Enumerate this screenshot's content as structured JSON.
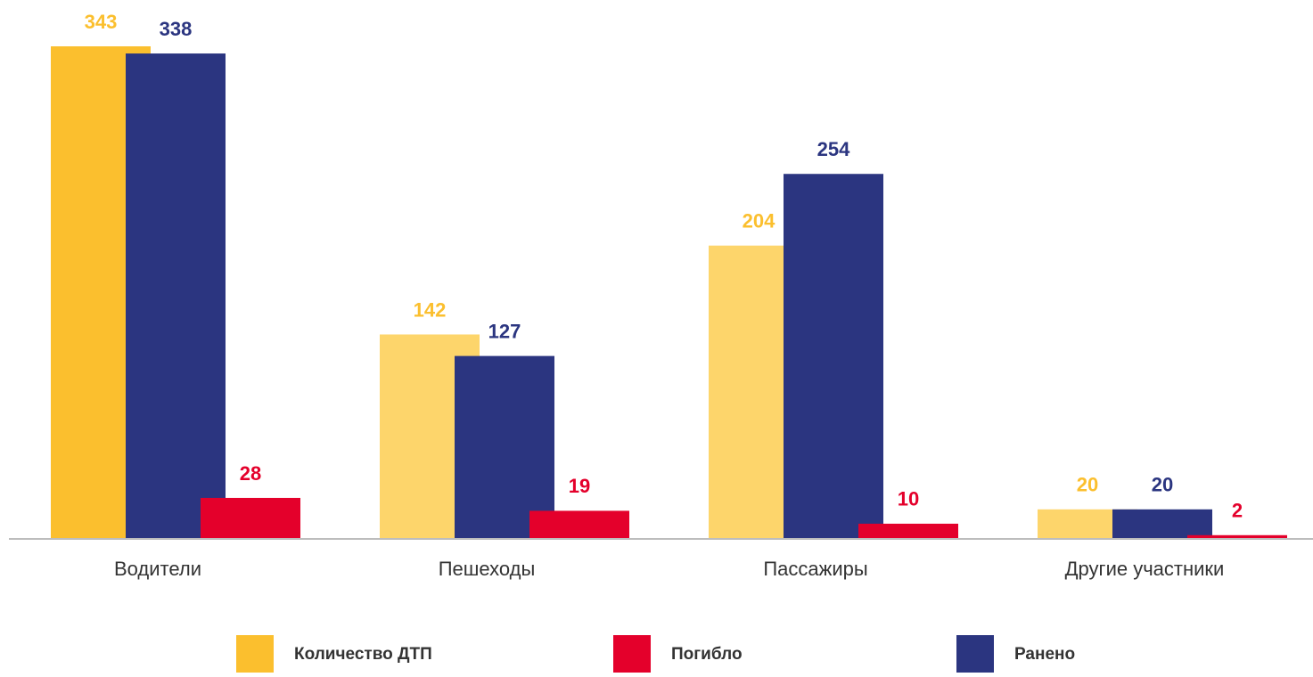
{
  "chart_data": {
    "type": "bar",
    "categories": [
      "Водители",
      "Пешеходы",
      "Пассажиры",
      "Другие участники"
    ],
    "series": [
      {
        "name": "Количество ДТП",
        "color": "#FBBF2E",
        "colors": [
          "#FBBF2E",
          "#FDD56B",
          "#FDD56B",
          "#FDD56B"
        ],
        "values": [
          343,
          142,
          204,
          20
        ]
      },
      {
        "name": "Ранено",
        "color": "#2B3580",
        "values": [
          338,
          127,
          254,
          20
        ]
      },
      {
        "name": "Погибло",
        "color": "#E4002B",
        "values": [
          28,
          19,
          10,
          2
        ]
      }
    ],
    "grid": false
  }
}
